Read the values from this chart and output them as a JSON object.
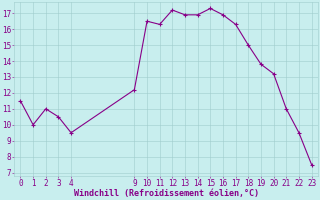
{
  "x": [
    0,
    1,
    2,
    3,
    4,
    9,
    10,
    11,
    12,
    13,
    14,
    15,
    16,
    17,
    18,
    19,
    20,
    21,
    22,
    23
  ],
  "y": [
    11.5,
    10.0,
    11.0,
    10.5,
    9.5,
    12.2,
    16.5,
    16.3,
    17.2,
    16.9,
    16.9,
    17.3,
    16.9,
    16.3,
    15.0,
    13.8,
    13.2,
    11.0,
    9.5,
    7.5
  ],
  "line_color": "#880088",
  "marker_color": "#880088",
  "bg_color": "#C8EEEE",
  "grid_color": "#A0CCCC",
  "xlabel": "Windchill (Refroidissement éolien,°C)",
  "xlabel_color": "#880088",
  "yticks": [
    7,
    8,
    9,
    10,
    11,
    12,
    13,
    14,
    15,
    16,
    17
  ],
  "xticks": [
    0,
    1,
    2,
    3,
    4,
    9,
    10,
    11,
    12,
    13,
    14,
    15,
    16,
    17,
    18,
    19,
    20,
    21,
    22,
    23
  ],
  "ylim": [
    6.8,
    17.7
  ],
  "xlim": [
    -0.5,
    23.5
  ],
  "tick_color": "#880088",
  "font_family": "monospace",
  "tick_fontsize": 5.5,
  "xlabel_fontsize": 6.0
}
